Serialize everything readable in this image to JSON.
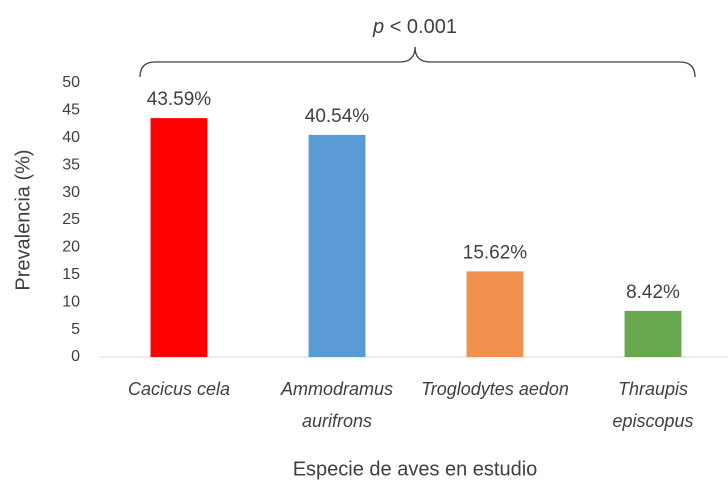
{
  "chart_data": {
    "type": "bar",
    "annotation": {
      "variable": "p",
      "text": "< 0.001"
    },
    "categories": [
      "Cacicus cela",
      "Ammodramus aurifrons",
      "Troglodytes aedon",
      "Thraupis episcopus"
    ],
    "values": [
      43.59,
      40.54,
      15.62,
      8.42
    ],
    "value_labels": [
      "43.59%",
      "40.54%",
      "15.62%",
      "8.42%"
    ],
    "colors": [
      "#ff0000",
      "#5b9bd5",
      "#f0914e",
      "#6aa84f"
    ],
    "ylim": [
      0,
      50
    ],
    "yticks": [
      0,
      5,
      10,
      15,
      20,
      25,
      30,
      35,
      40,
      45,
      50
    ],
    "y_label": "Prevalencia (%)",
    "x_label": "Especie de aves en estudio"
  }
}
